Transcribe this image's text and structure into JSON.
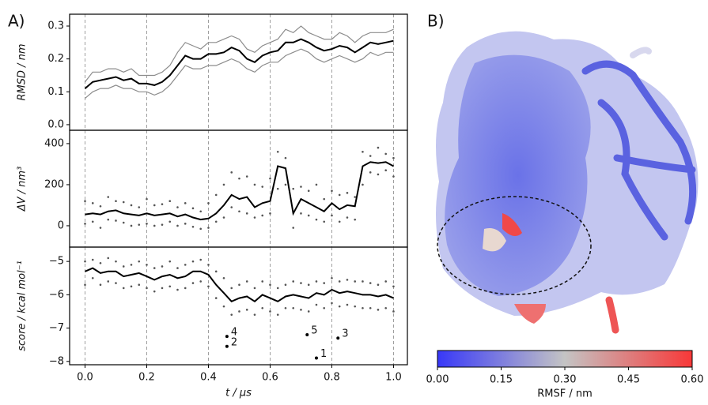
{
  "chart_data": [
    {
      "type": "line",
      "panel": "A)",
      "ylabel": "RMSD / nm",
      "xlim": [
        -0.05,
        1.045
      ],
      "ylim": [
        -0.017,
        0.336
      ],
      "xticks": [
        0,
        0.2,
        0.4,
        0.6,
        0.8,
        1
      ],
      "show_xtick_labels": false,
      "yticks": [
        {
          "value": 0,
          "label": "0.0"
        },
        0.1,
        0.2,
        0.3
      ],
      "grid": "x",
      "x": [
        0,
        0.025,
        0.05,
        0.075,
        0.1,
        0.125,
        0.15,
        0.175,
        0.2,
        0.225,
        0.25,
        0.275,
        0.3,
        0.325,
        0.35,
        0.375,
        0.4,
        0.425,
        0.45,
        0.475,
        0.5,
        0.525,
        0.55,
        0.575,
        0.6,
        0.625,
        0.65,
        0.675,
        0.7,
        0.725,
        0.75,
        0.775,
        0.8,
        0.825,
        0.85,
        0.875,
        0.9,
        0.925,
        0.95,
        0.975,
        1
      ],
      "series": [
        {
          "color": "#8c8c8c",
          "style": "line",
          "values": [
            0.13,
            0.16,
            0.16,
            0.17,
            0.17,
            0.16,
            0.17,
            0.15,
            0.15,
            0.15,
            0.16,
            0.18,
            0.22,
            0.25,
            0.24,
            0.23,
            0.25,
            0.25,
            0.26,
            0.27,
            0.26,
            0.23,
            0.22,
            0.24,
            0.25,
            0.26,
            0.29,
            0.28,
            0.3,
            0.28,
            0.27,
            0.26,
            0.26,
            0.28,
            0.27,
            0.25,
            0.27,
            0.28,
            0.28,
            0.28,
            0.29
          ]
        },
        {
          "color": "#8c8c8c",
          "style": "line",
          "values": [
            0.08,
            0.1,
            0.11,
            0.11,
            0.12,
            0.11,
            0.11,
            0.1,
            0.1,
            0.09,
            0.1,
            0.12,
            0.15,
            0.18,
            0.17,
            0.17,
            0.18,
            0.18,
            0.19,
            0.2,
            0.19,
            0.17,
            0.16,
            0.18,
            0.19,
            0.19,
            0.21,
            0.22,
            0.23,
            0.22,
            0.2,
            0.19,
            0.2,
            0.21,
            0.2,
            0.19,
            0.2,
            0.22,
            0.21,
            0.22,
            0.22
          ]
        },
        {
          "color": "#000000",
          "style": "line",
          "values": [
            0.11,
            0.13,
            0.135,
            0.14,
            0.145,
            0.135,
            0.14,
            0.125,
            0.125,
            0.12,
            0.13,
            0.15,
            0.18,
            0.21,
            0.2,
            0.2,
            0.215,
            0.215,
            0.22,
            0.235,
            0.225,
            0.2,
            0.19,
            0.21,
            0.22,
            0.225,
            0.25,
            0.25,
            0.26,
            0.25,
            0.235,
            0.225,
            0.23,
            0.24,
            0.235,
            0.22,
            0.235,
            0.25,
            0.245,
            0.25,
            0.255
          ]
        }
      ]
    },
    {
      "type": "line",
      "ylabel": "ΔV / nm³",
      "xlim": [
        -0.05,
        1.045
      ],
      "ylim": [
        -104,
        465
      ],
      "xticks": [
        0,
        0.2,
        0.4,
        0.6,
        0.8,
        1
      ],
      "show_xtick_labels": false,
      "yticks": [
        0,
        200,
        400
      ],
      "grid": "x",
      "x": [
        0,
        0.025,
        0.05,
        0.075,
        0.1,
        0.125,
        0.15,
        0.175,
        0.2,
        0.225,
        0.25,
        0.275,
        0.3,
        0.325,
        0.35,
        0.375,
        0.4,
        0.425,
        0.45,
        0.475,
        0.5,
        0.525,
        0.55,
        0.575,
        0.6,
        0.625,
        0.65,
        0.675,
        0.7,
        0.725,
        0.75,
        0.775,
        0.8,
        0.825,
        0.85,
        0.875,
        0.9,
        0.925,
        0.95,
        0.975,
        1
      ],
      "series": [
        {
          "color": "#555555",
          "style": "dots",
          "values": [
            120,
            110,
            95,
            140,
            120,
            115,
            100,
            90,
            130,
            100,
            105,
            120,
            90,
            110,
            85,
            70,
            110,
            150,
            200,
            260,
            230,
            240,
            200,
            190,
            230,
            360,
            330,
            180,
            190,
            170,
            200,
            130,
            170,
            150,
            160,
            140,
            360,
            340,
            380,
            350,
            330
          ]
        },
        {
          "color": "#555555",
          "style": "dots",
          "values": [
            10,
            20,
            -10,
            30,
            25,
            15,
            0,
            5,
            10,
            0,
            5,
            20,
            0,
            10,
            -5,
            -15,
            -10,
            20,
            40,
            90,
            70,
            60,
            40,
            50,
            60,
            180,
            200,
            -10,
            60,
            50,
            30,
            20,
            50,
            20,
            40,
            30,
            200,
            260,
            250,
            270,
            240
          ]
        },
        {
          "color": "#000000",
          "style": "line",
          "values": [
            55,
            60,
            55,
            70,
            75,
            60,
            55,
            50,
            60,
            50,
            55,
            60,
            45,
            55,
            40,
            30,
            35,
            60,
            100,
            150,
            130,
            140,
            90,
            110,
            120,
            290,
            280,
            60,
            130,
            110,
            90,
            70,
            110,
            80,
            100,
            95,
            290,
            310,
            305,
            310,
            290
          ]
        }
      ]
    },
    {
      "type": "line",
      "ylabel": "score / kcal mol⁻¹",
      "xlabel": "t / μs",
      "xlim": [
        -0.05,
        1.045
      ],
      "ylim": [
        -8.1,
        -4.57
      ],
      "xticks": [
        {
          "value": 0,
          "label": "0.0"
        },
        0.2,
        0.4,
        0.6,
        0.8,
        {
          "value": 1,
          "label": "1.0"
        }
      ],
      "show_xtick_labels": true,
      "yticks": [
        {
          "value": -5,
          "label": "−5"
        },
        {
          "value": -6,
          "label": "−6"
        },
        {
          "value": -7,
          "label": "−7"
        },
        {
          "value": -8,
          "label": "−8"
        }
      ],
      "grid": "x",
      "x": [
        0,
        0.025,
        0.05,
        0.075,
        0.1,
        0.125,
        0.15,
        0.175,
        0.2,
        0.225,
        0.25,
        0.275,
        0.3,
        0.325,
        0.35,
        0.375,
        0.4,
        0.425,
        0.45,
        0.475,
        0.5,
        0.525,
        0.55,
        0.575,
        0.6,
        0.625,
        0.65,
        0.675,
        0.7,
        0.725,
        0.75,
        0.775,
        0.8,
        0.825,
        0.85,
        0.875,
        0.9,
        0.925,
        0.95,
        0.975,
        1
      ],
      "series": [
        {
          "color": "#555555",
          "style": "dots",
          "values": [
            -5.0,
            -4.95,
            -5.05,
            -4.9,
            -5.0,
            -5.15,
            -5.1,
            -5.0,
            -5.1,
            -5.2,
            -5.15,
            -5.0,
            -5.2,
            -5.1,
            -5.0,
            -4.95,
            -5.1,
            -5.3,
            -5.5,
            -5.8,
            -5.7,
            -5.6,
            -5.8,
            -5.6,
            -5.7,
            -5.8,
            -5.7,
            -5.6,
            -5.65,
            -5.7,
            -5.6,
            -5.65,
            -5.5,
            -5.6,
            -5.55,
            -5.6,
            -5.6,
            -5.65,
            -5.7,
            -5.6,
            -5.75
          ]
        },
        {
          "color": "#555555",
          "style": "dots",
          "values": [
            -5.7,
            -5.5,
            -5.7,
            -5.6,
            -5.65,
            -5.8,
            -5.75,
            -5.7,
            -5.8,
            -5.9,
            -5.8,
            -5.75,
            -5.85,
            -5.8,
            -5.65,
            -5.6,
            -5.75,
            -6.1,
            -6.35,
            -6.6,
            -6.5,
            -6.45,
            -6.6,
            -6.4,
            -6.5,
            -6.6,
            -6.4,
            -6.4,
            -6.45,
            -6.5,
            -6.3,
            -6.4,
            -6.25,
            -6.35,
            -6.3,
            -6.35,
            -6.4,
            -6.4,
            -6.45,
            -6.4,
            -6.5
          ]
        },
        {
          "color": "#000000",
          "style": "line",
          "values": [
            -5.3,
            -5.2,
            -5.35,
            -5.3,
            -5.3,
            -5.45,
            -5.4,
            -5.35,
            -5.45,
            -5.55,
            -5.45,
            -5.4,
            -5.5,
            -5.45,
            -5.3,
            -5.3,
            -5.4,
            -5.7,
            -5.95,
            -6.2,
            -6.1,
            -6.05,
            -6.2,
            -6.0,
            -6.1,
            -6.2,
            -6.05,
            -6.0,
            -6.05,
            -6.1,
            -5.95,
            -6.0,
            -5.85,
            -5.95,
            -5.9,
            -5.95,
            -6.0,
            -6.0,
            -6.05,
            -6.0,
            -6.1
          ]
        }
      ],
      "annotations": [
        {
          "x": 0.75,
          "y": -7.9,
          "text": "1"
        },
        {
          "x": 0.46,
          "y": -7.55,
          "text": "2"
        },
        {
          "x": 0.82,
          "y": -7.3,
          "text": "3"
        },
        {
          "x": 0.46,
          "y": -7.25,
          "text": "4"
        },
        {
          "x": 0.72,
          "y": -7.2,
          "text": "5"
        }
      ]
    },
    {
      "type": "colorbar",
      "panel": "B)",
      "xlabel": "RMSF / nm",
      "xlim": [
        0,
        0.6
      ],
      "colors": [
        "#3838f8",
        "#c4c4c4",
        "#f83838"
      ],
      "xticks": [
        {
          "value": 0,
          "label": "0.00"
        },
        {
          "value": 0.15,
          "label": "0.15"
        },
        {
          "value": 0.3,
          "label": "0.30"
        },
        {
          "value": 0.45,
          "label": "0.45"
        },
        {
          "value": 0.6,
          "label": "0.60"
        }
      ]
    }
  ]
}
